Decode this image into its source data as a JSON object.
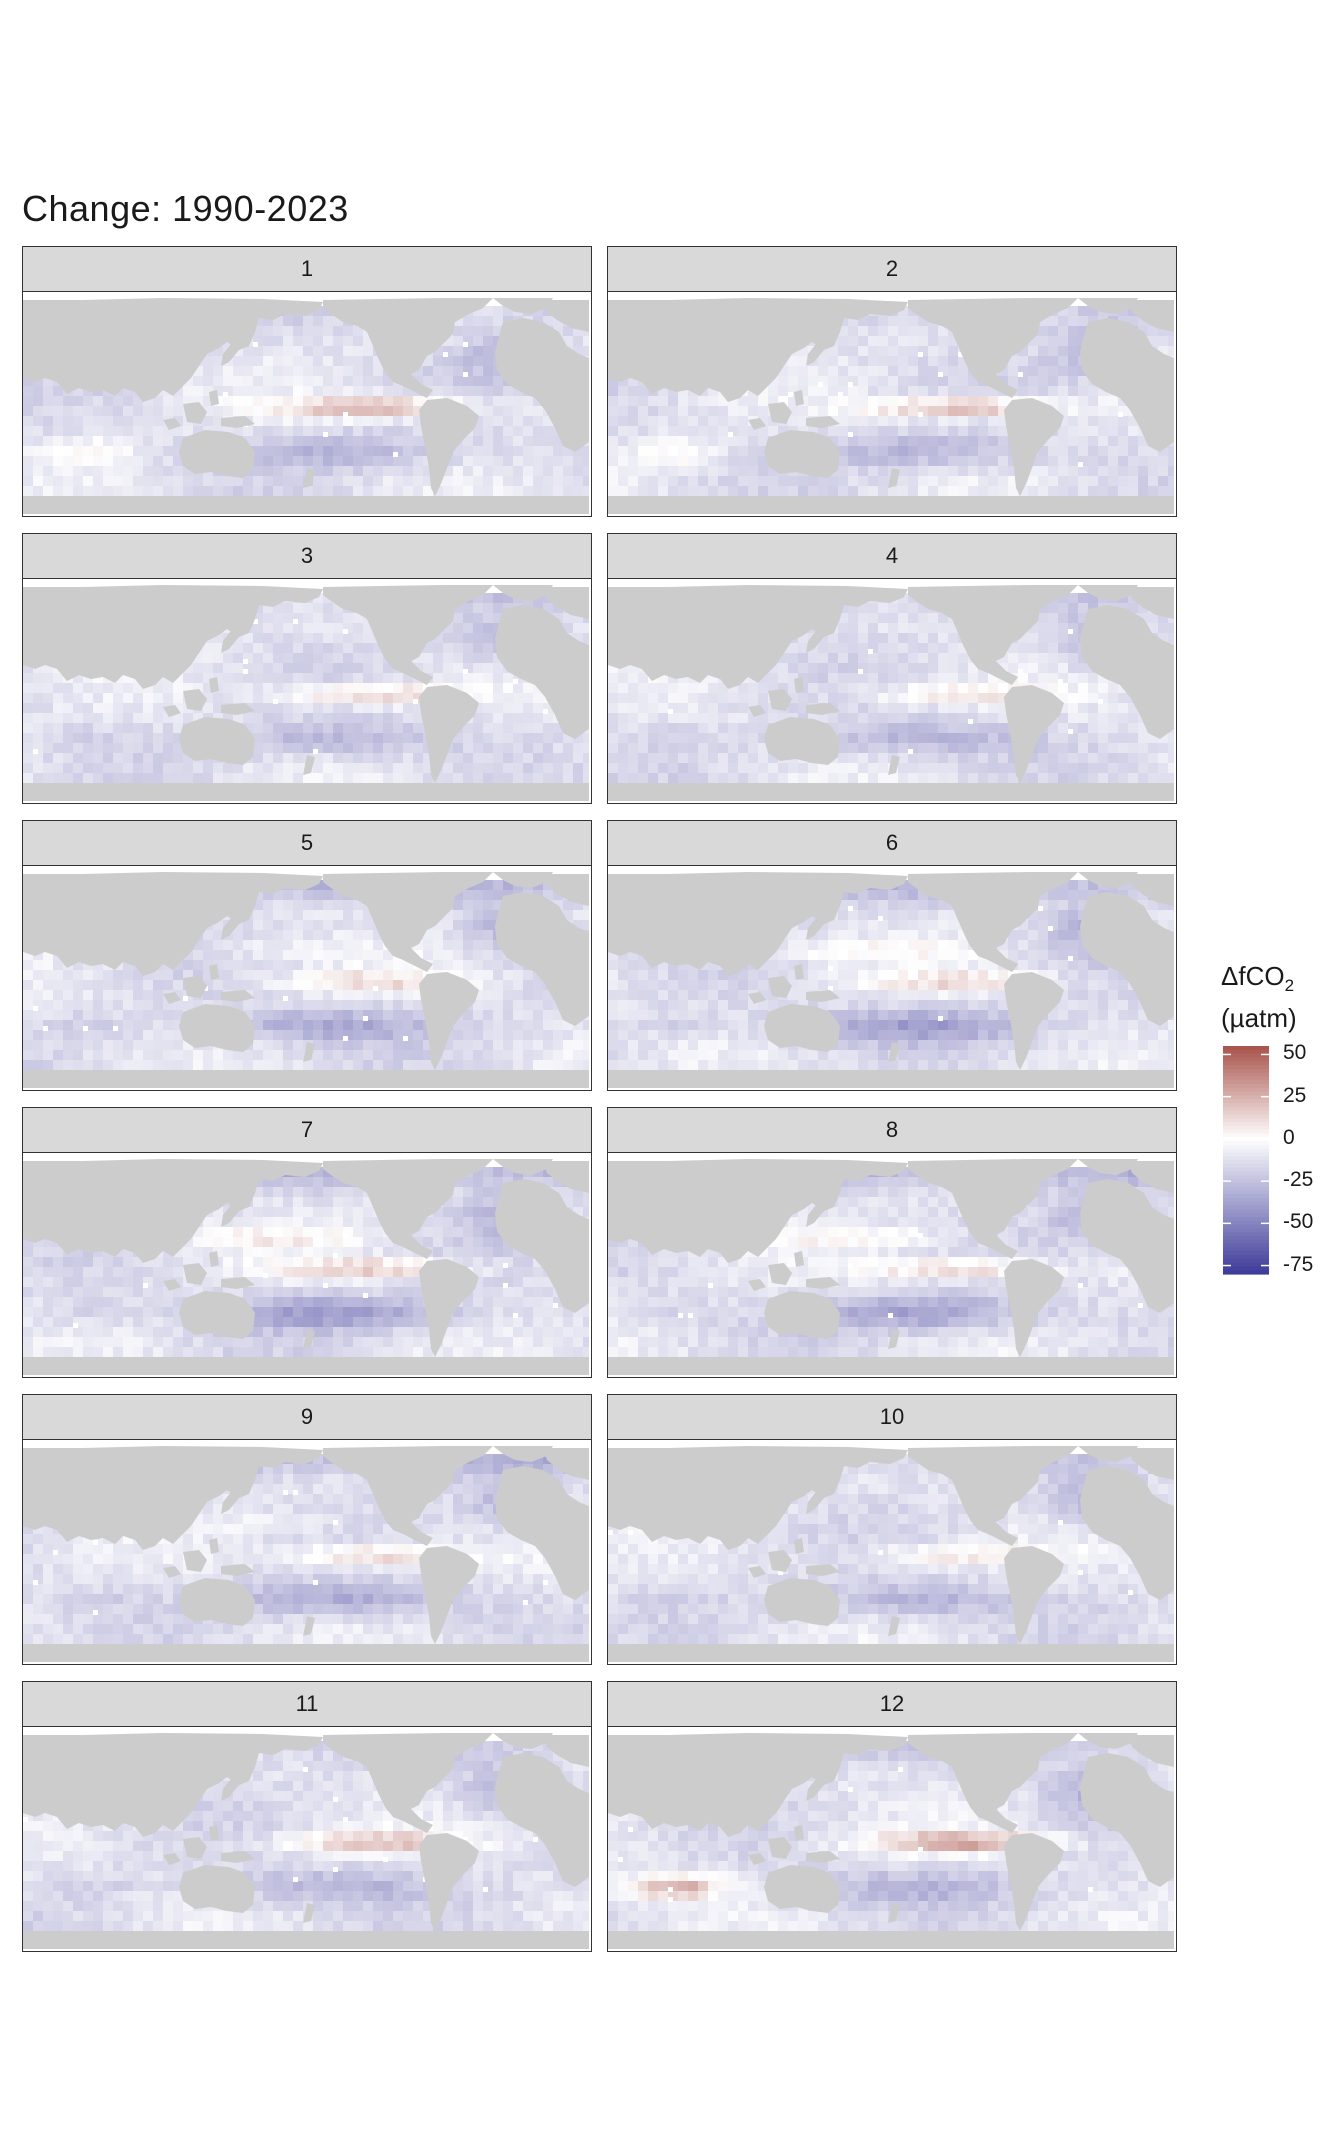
{
  "title": "Change:  1990-2023",
  "legend": {
    "title_main": "ΔfCO",
    "title_sub": "2",
    "unit": "(µatm)",
    "ticks": [
      "50",
      "25",
      "0",
      "-25",
      "-50",
      "-75"
    ],
    "range": [
      -80,
      55
    ],
    "colors": {
      "high": "#a8524a",
      "mid": "#ffffff",
      "low": "#3d3a99"
    }
  },
  "colors": {
    "land": "#cccccc",
    "ocean_background": "#ffffff"
  },
  "panels": [
    {
      "label": "1"
    },
    {
      "label": "2"
    },
    {
      "label": "3"
    },
    {
      "label": "4"
    },
    {
      "label": "5"
    },
    {
      "label": "6"
    },
    {
      "label": "7"
    },
    {
      "label": "8"
    },
    {
      "label": "9"
    },
    {
      "label": "10"
    },
    {
      "label": "11"
    },
    {
      "label": "12"
    }
  ],
  "chart_data": {
    "type": "heatmap",
    "facet_variable": "month",
    "facets": [
      "1",
      "2",
      "3",
      "4",
      "5",
      "6",
      "7",
      "8",
      "9",
      "10",
      "11",
      "12"
    ],
    "variable": "ΔfCO2",
    "unit": "µatm",
    "period": "1990-2023",
    "color_scale": {
      "min": -80,
      "max": 55,
      "ticks": [
        50,
        25,
        0,
        -25,
        -50,
        -75
      ]
    }
  }
}
